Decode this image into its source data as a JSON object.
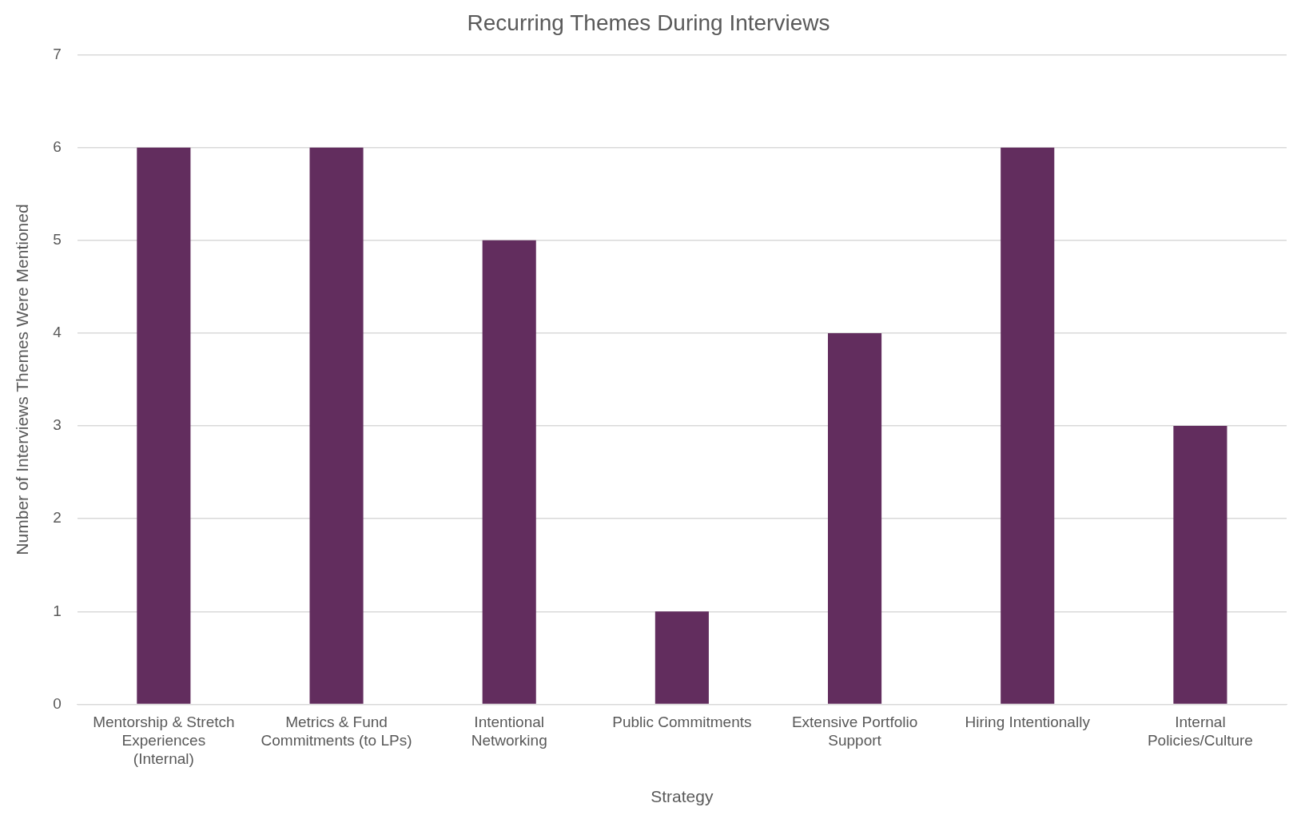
{
  "chart_data": {
    "type": "bar",
    "title": "Recurring Themes During Interviews",
    "xlabel": "Strategy",
    "ylabel": "Number of Interviews Themes Were Mentioned",
    "categories": [
      "Mentorship & Stretch Experiences (Internal)",
      "Metrics & Fund Commitments (to LPs)",
      "Intentional Networking",
      "Public Commitments",
      "Extensive Portfolio Support",
      "Hiring Intentionally",
      "Internal Policies/Culture"
    ],
    "values": [
      6,
      6,
      5,
      1,
      4,
      6,
      3
    ],
    "color": "#622d5e",
    "ylim": [
      0,
      7
    ],
    "yticks": [
      0,
      1,
      2,
      3,
      4,
      5,
      6,
      7
    ],
    "grid": "y",
    "legend": false
  }
}
